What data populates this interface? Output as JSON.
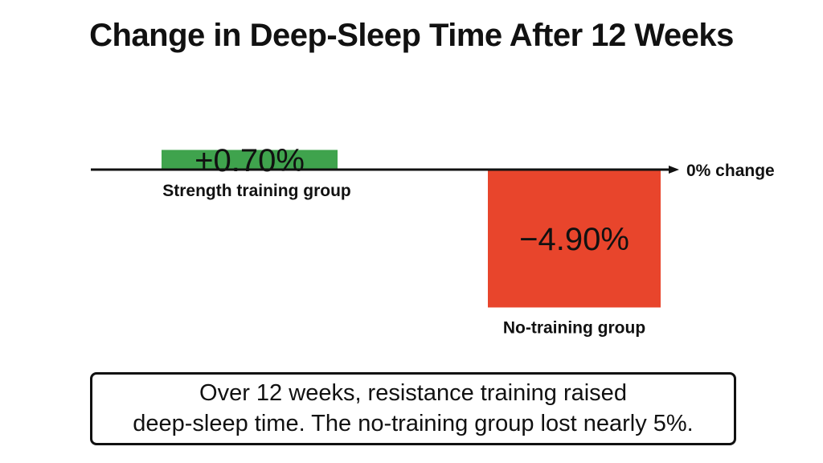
{
  "chart_data": {
    "type": "bar",
    "title": "Change in Deep-Sleep Time After 12 Weeks",
    "categories": [
      "Strength training group",
      "No-training group"
    ],
    "values": [
      0.7,
      -4.9
    ],
    "data_labels": [
      "+0.70%",
      "−4.90%"
    ],
    "colors": [
      "#3fa34d",
      "#e8452c"
    ],
    "zero_line_label": "0% change",
    "ylim": [
      -5.5,
      1.5
    ],
    "grid": false,
    "xlabel": "",
    "ylabel": ""
  },
  "note": {
    "lines": [
      "Over 12 weeks, resistance training raised",
      "deep-sleep time. The no-training group lost nearly 5%."
    ]
  }
}
